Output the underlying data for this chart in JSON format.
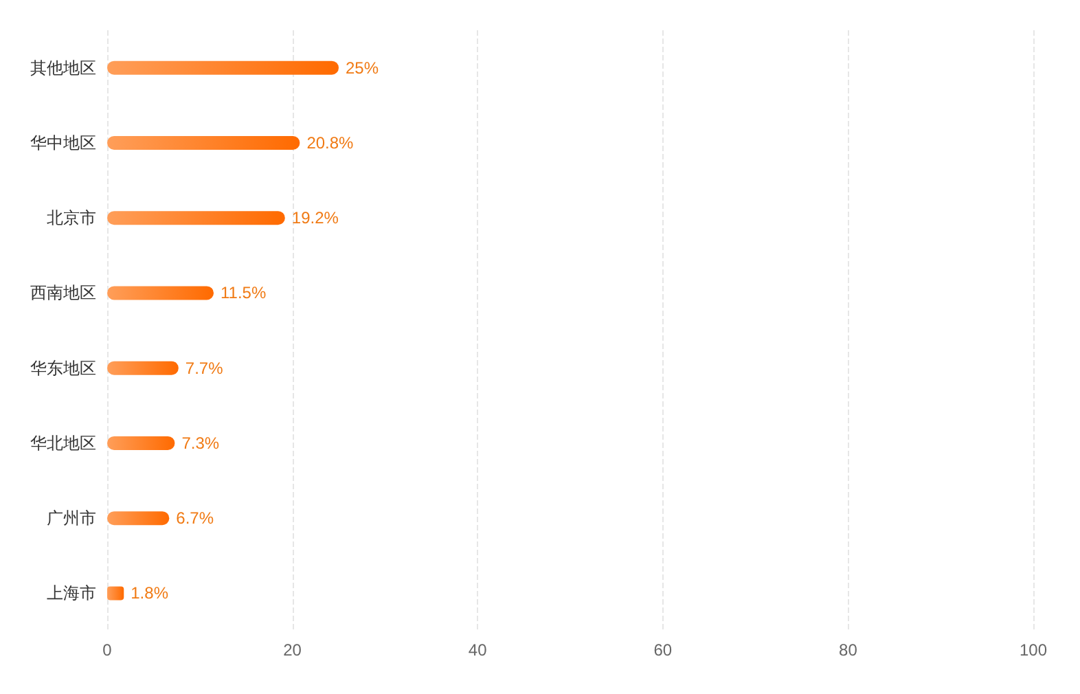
{
  "chart_data": {
    "type": "bar",
    "orientation": "horizontal",
    "categories": [
      "其他地区",
      "华中地区",
      "北京市",
      "西南地区",
      "华东地区",
      "华北地区",
      "广州市",
      "上海市"
    ],
    "values": [
      25,
      20.8,
      19.2,
      11.5,
      7.7,
      7.3,
      6.7,
      1.8
    ],
    "value_labels": [
      "25%",
      "20.8%",
      "19.2%",
      "11.5%",
      "7.7%",
      "7.3%",
      "6.7%",
      "1.8%"
    ],
    "color": "#ff6a00",
    "xlim": [
      0,
      100
    ],
    "xticks": [
      0,
      20,
      40,
      60,
      80,
      100
    ],
    "grid": "x"
  }
}
